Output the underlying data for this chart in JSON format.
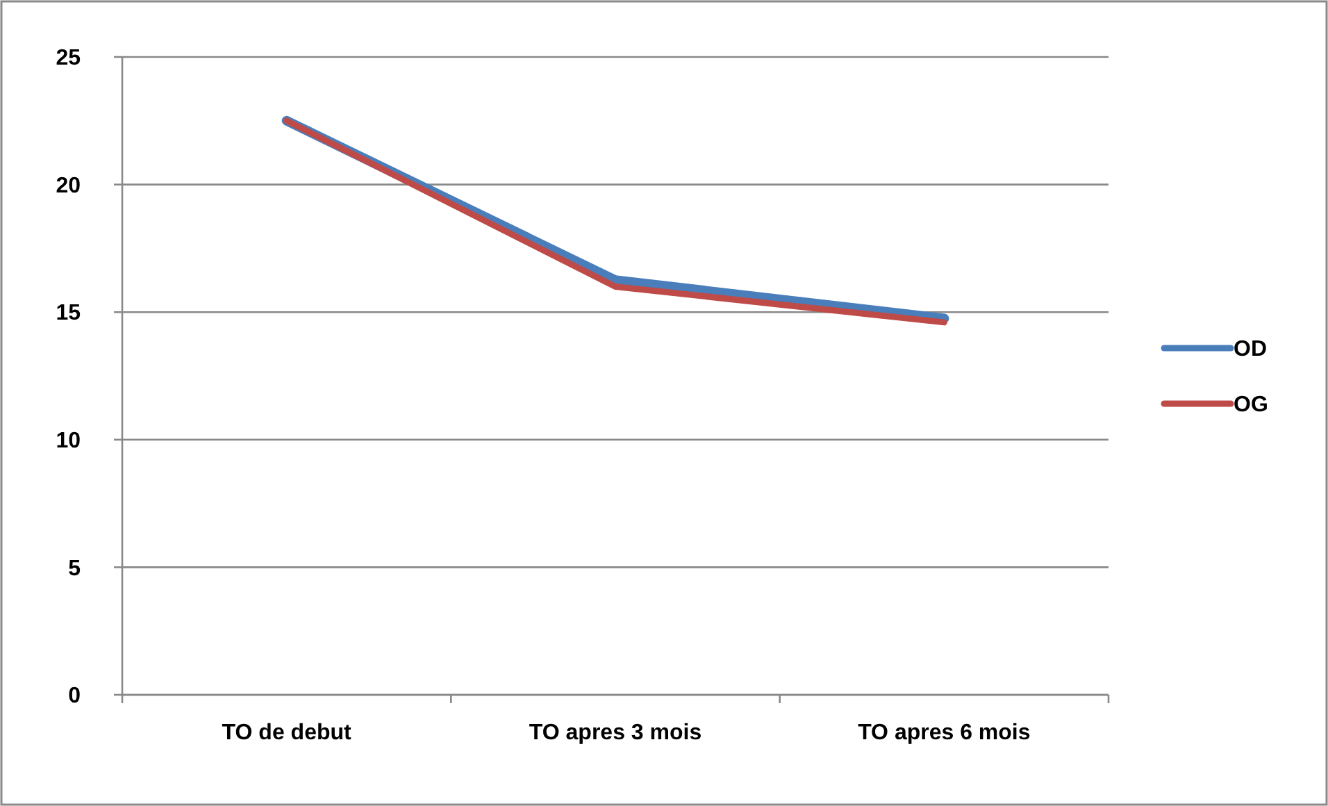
{
  "chart_data": {
    "type": "line",
    "categories": [
      "TO de debut",
      "TO apres 3 mois",
      "TO apres 6 mois"
    ],
    "series": [
      {
        "name": "OD",
        "color": "#4a7ebb",
        "values": [
          22.5,
          16.25,
          14.75
        ]
      },
      {
        "name": "OG",
        "color": "#be4b48",
        "values": [
          22.5,
          16.0,
          14.6
        ]
      }
    ],
    "ylim": [
      0,
      25
    ],
    "yticks": [
      0,
      5,
      10,
      15,
      20,
      25
    ],
    "grid": "y",
    "legend": "right",
    "marker": "none",
    "line_style": "solid"
  }
}
